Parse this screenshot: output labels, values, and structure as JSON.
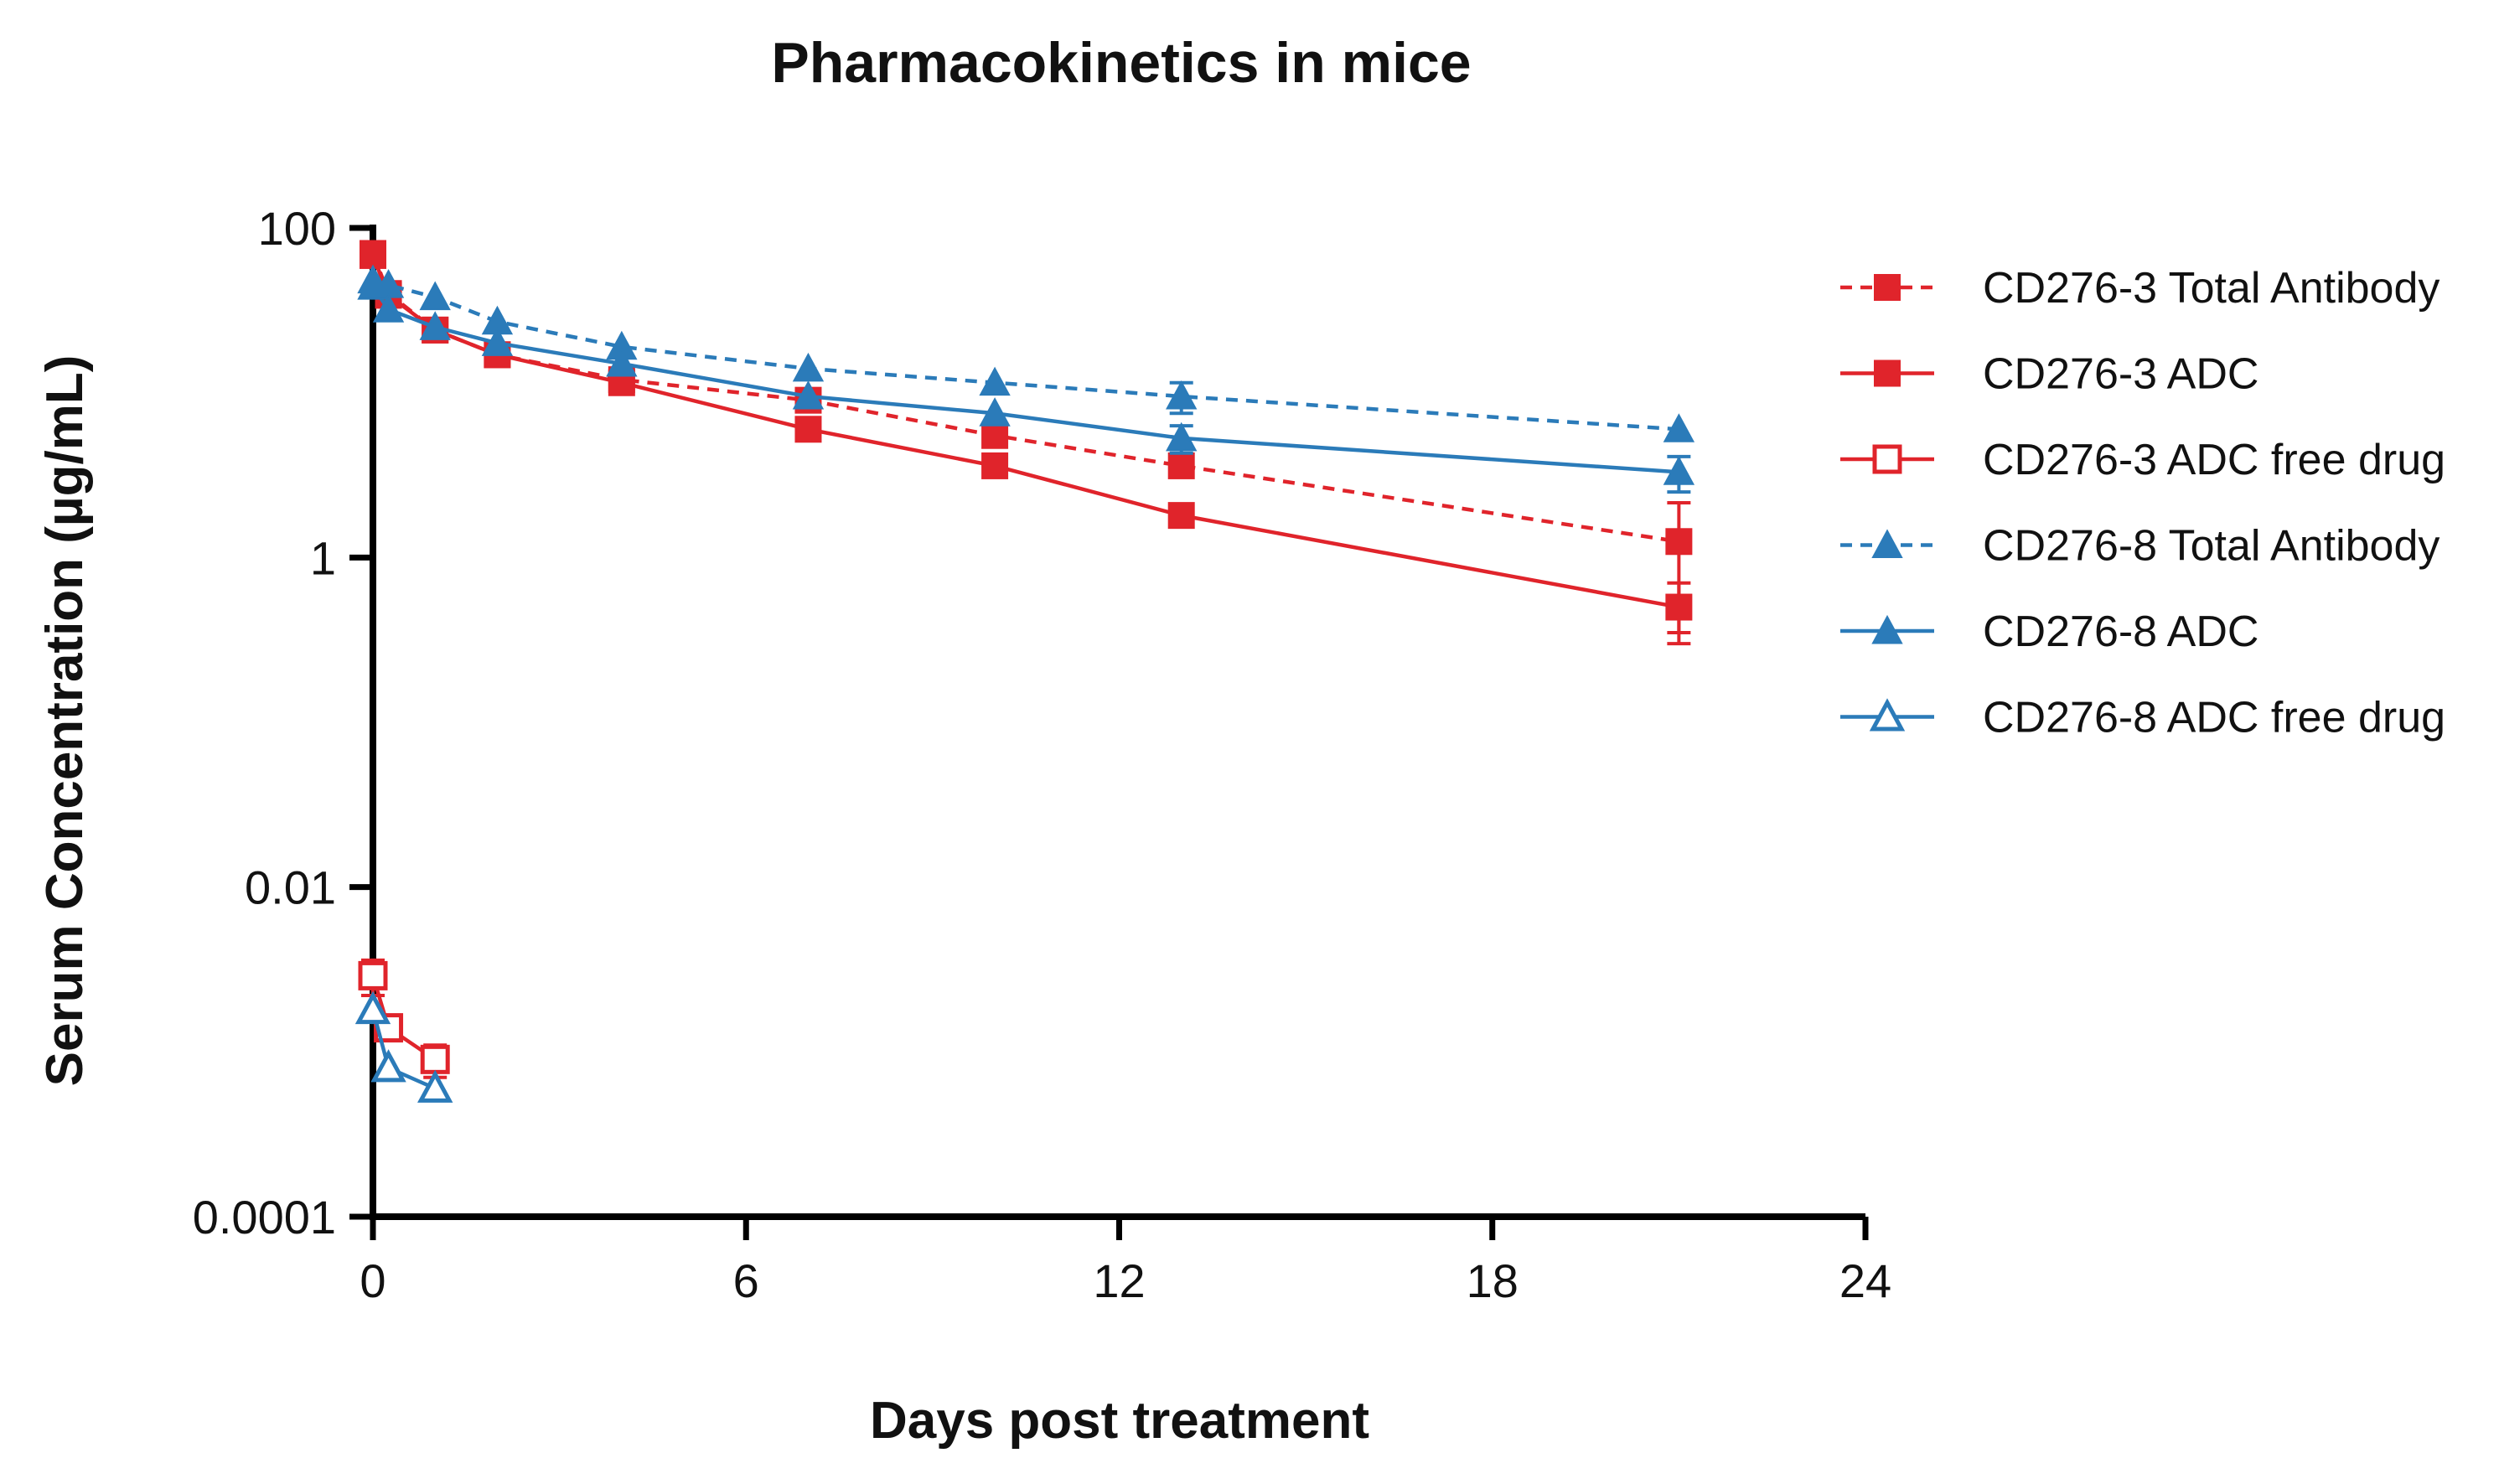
{
  "chart_data": {
    "type": "line",
    "title": "Pharmacokinetics in mice",
    "xlabel": "Days post treatment",
    "ylabel": "Serum Concentration (µg/mL)",
    "xlim": [
      0,
      24
    ],
    "ylim": [
      0.0001,
      100
    ],
    "yscale": "log",
    "xticks": [
      0,
      6,
      12,
      18,
      24
    ],
    "xtick_labels": [
      "0",
      "6",
      "12",
      "18",
      "24"
    ],
    "yticks": [
      0.0001,
      0.01,
      1,
      100
    ],
    "ytick_labels": [
      "0.0001",
      "0.01",
      "1",
      "100"
    ],
    "legend_position": "right",
    "series": [
      {
        "name": "CD276-3 Total Antibody",
        "color": "#e0242b",
        "linestyle": "dashed",
        "marker": "square-filled",
        "x": [
          0,
          0.25,
          1,
          2,
          4,
          7,
          10,
          13,
          21
        ],
        "y": [
          70,
          40,
          24,
          17,
          12,
          9,
          5.5,
          3.6,
          1.25
        ],
        "err": [
          0,
          0,
          0,
          0,
          0,
          0,
          0,
          0,
          0.9
        ]
      },
      {
        "name": "CD276-3 ADC",
        "color": "#e0242b",
        "linestyle": "solid",
        "marker": "square-filled",
        "x": [
          0,
          0.25,
          1,
          2,
          4,
          7,
          10,
          13,
          21
        ],
        "y": [
          68,
          39,
          24,
          17,
          11.5,
          6,
          3.6,
          1.8,
          0.5
        ],
        "err": [
          0,
          0,
          0,
          0,
          0,
          0,
          0,
          0,
          0.2
        ]
      },
      {
        "name": "CD276-3 ADC  free drug",
        "color": "#e0242b",
        "linestyle": "solid",
        "marker": "square-open",
        "x": [
          0,
          0.25,
          1
        ],
        "y": [
          0.0029,
          0.0014,
          0.0009
        ],
        "err": [
          0.0007,
          0,
          0.0002
        ]
      },
      {
        "name": "CD276-8 Total Antibody",
        "color": "#2b7bb9",
        "linestyle": "dashed",
        "marker": "triangle-filled",
        "x": [
          0,
          0.25,
          1,
          2,
          4,
          7,
          10,
          13,
          21
        ],
        "y": [
          48,
          45,
          38,
          27,
          19,
          14,
          11.5,
          9.5,
          6
        ],
        "err": [
          0,
          0,
          0,
          0,
          0,
          0,
          0,
          2,
          0
        ]
      },
      {
        "name": "CD276-8 ADC",
        "color": "#2b7bb9",
        "linestyle": "solid",
        "marker": "triangle-filled",
        "x": [
          0,
          0.25,
          1,
          2,
          4,
          7,
          10,
          13,
          21
        ],
        "y": [
          44,
          32,
          25,
          20,
          15,
          9.5,
          7.5,
          5.3,
          3.3
        ],
        "err": [
          0,
          0,
          0,
          0,
          0,
          0,
          0,
          1,
          0.8
        ]
      },
      {
        "name": "CD276-8 ADC free drug",
        "color": "#2b7bb9",
        "linestyle": "solid",
        "marker": "triangle-open",
        "x": [
          0,
          0.25,
          1
        ],
        "y": [
          0.0018,
          0.0008,
          0.0006
        ],
        "err": [
          0,
          0,
          0
        ]
      }
    ]
  }
}
